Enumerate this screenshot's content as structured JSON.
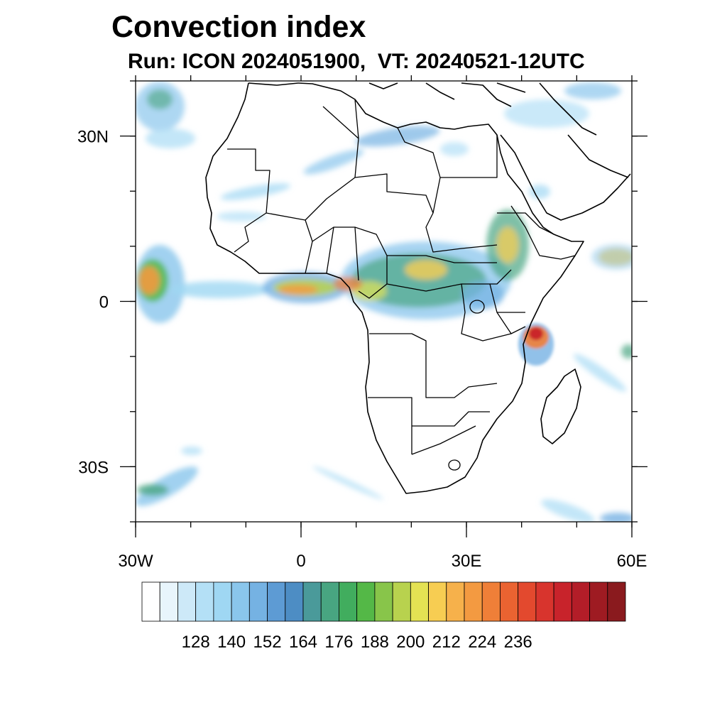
{
  "title": "Convection index",
  "subtitle": "Run: ICON 2024051900,  VT: 20240521-12UTC",
  "map": {
    "extent": {
      "lon": [
        -30,
        60
      ],
      "lat": [
        -40,
        40
      ]
    },
    "lon_ticks": [
      {
        "value": -30,
        "label": "30W"
      },
      {
        "value": 0,
        "label": "0"
      },
      {
        "value": 30,
        "label": "30E"
      },
      {
        "value": 60,
        "label": "60E"
      }
    ],
    "lat_ticks": [
      {
        "value": 30,
        "label": "30N"
      },
      {
        "value": 0,
        "label": "0"
      },
      {
        "value": -30,
        "label": "30S"
      }
    ],
    "field": "convection index"
  },
  "colorbar": {
    "labels": [
      "128",
      "140",
      "152",
      "164",
      "176",
      "188",
      "200",
      "212",
      "224",
      "236"
    ],
    "colors": [
      "#ffffff",
      "#e8f5fc",
      "#cde9f8",
      "#b4e0f6",
      "#9fd7f3",
      "#8ac6ec",
      "#75b2e3",
      "#5d9bd4",
      "#4d8dc4",
      "#4a9a9a",
      "#48a581",
      "#41ad5e",
      "#54b847",
      "#88c54a",
      "#b8d24e",
      "#e4e253",
      "#f7cd52",
      "#f6b14b",
      "#f39a41",
      "#ef7f38",
      "#ea6331",
      "#e3492e",
      "#d8342d",
      "#c8232b",
      "#b31d28",
      "#9e1b22",
      "#8a1a1e"
    ]
  }
}
